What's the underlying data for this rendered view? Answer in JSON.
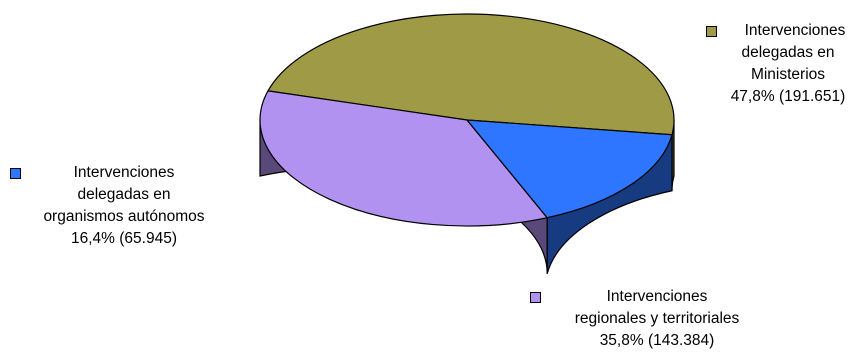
{
  "chart_data": {
    "type": "pie",
    "title": "",
    "slices": [
      {
        "label_lines": [
          "Intervenciones",
          "delegadas en",
          "Ministerios"
        ],
        "value": 191651,
        "value_text": "47,8% (191.651)",
        "percent": 47.8,
        "color": "#9E9A45"
      },
      {
        "label_lines": [
          "Intervenciones",
          "regionales y territoriales"
        ],
        "value": 143384,
        "value_text": "35,8% (143.384)",
        "percent": 35.8,
        "color": "#B292F0"
      },
      {
        "label_lines": [
          "Intervenciones",
          "delegadas en",
          "organismos autónomos"
        ],
        "value": 65945,
        "value_text": "16,4% (65.945)",
        "percent": 16.4,
        "color": "#2E75FF"
      }
    ],
    "legend": "labels beside slices with square markers"
  }
}
